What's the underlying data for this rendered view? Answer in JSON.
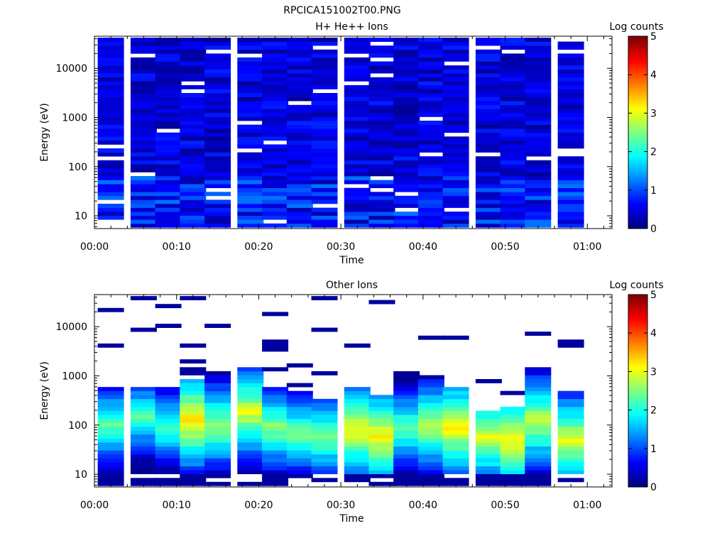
{
  "figure_title": "RPCICA151002T00.PNG",
  "colorbar": {
    "label": "Log counts",
    "min": 0,
    "max": 5,
    "ticks": [
      "0",
      "1",
      "2",
      "3",
      "4",
      "5"
    ]
  },
  "axis_common": {
    "xlabel": "Time",
    "ylabel": "Energy (eV)",
    "xticks": [
      "00:00",
      "00:10",
      "00:20",
      "00:30",
      "00:40",
      "00:50",
      "01:00"
    ],
    "yticks": [
      "10",
      "100",
      "1000",
      "10000"
    ]
  },
  "chart_data": [
    {
      "type": "heatmap",
      "title": "H+ He++ Ions",
      "xlabel": "Time",
      "ylabel": "Energy (eV)",
      "xlim": [
        "00:00",
        "01:03"
      ],
      "ylim": [
        5.5,
        45000
      ],
      "yscale": "log",
      "colorbar_label": "Log counts",
      "crange": [
        0,
        5
      ],
      "time_bins": [
        "00:02",
        "00:06",
        "00:09",
        "00:12",
        "00:15",
        "00:19",
        "00:22",
        "00:25",
        "00:28",
        "00:32",
        "00:35",
        "00:38",
        "00:41",
        "00:44",
        "00:48",
        "00:51",
        "00:54",
        "00:58"
      ],
      "energy_range_eV": [
        5.8,
        42000
      ],
      "typical_log_counts": [
        0.1,
        0.8
      ],
      "low_energy_log_counts": [
        0.2,
        1.2
      ],
      "notes_visible": "mostly blue (0–1 log counts) across all energies, sparse white gaps"
    },
    {
      "type": "heatmap",
      "title": "Other Ions",
      "xlabel": "Time",
      "ylabel": "Energy (eV)",
      "xlim": [
        "00:00",
        "01:03"
      ],
      "ylim": [
        5.5,
        45000
      ],
      "yscale": "log",
      "colorbar_label": "Log counts",
      "crange": [
        0,
        5
      ],
      "time_bins": [
        "00:02",
        "00:06",
        "00:09",
        "00:12",
        "00:15",
        "00:19",
        "00:22",
        "00:25",
        "00:28",
        "00:32",
        "00:35",
        "00:38",
        "00:41",
        "00:44",
        "00:48",
        "00:51",
        "00:54",
        "00:58"
      ],
      "peak_energy_eV": [
        100,
        150,
        90,
        130,
        100,
        180,
        90,
        70,
        60,
        80,
        60,
        90,
        100,
        90,
        60,
        50,
        120,
        50
      ],
      "peak_log_counts": [
        2.4,
        2.3,
        2.3,
        3.3,
        2.7,
        3.0,
        2.6,
        2.5,
        2.6,
        3.1,
        3.2,
        2.4,
        2.8,
        3.2,
        3.0,
        3.2,
        2.9,
        3.0
      ],
      "upper_extent_eV": [
        550,
        600,
        550,
        800,
        1200,
        1500,
        550,
        500,
        350,
        600,
        380,
        1300,
        900,
        600,
        200,
        250,
        1500,
        500
      ]
    }
  ]
}
